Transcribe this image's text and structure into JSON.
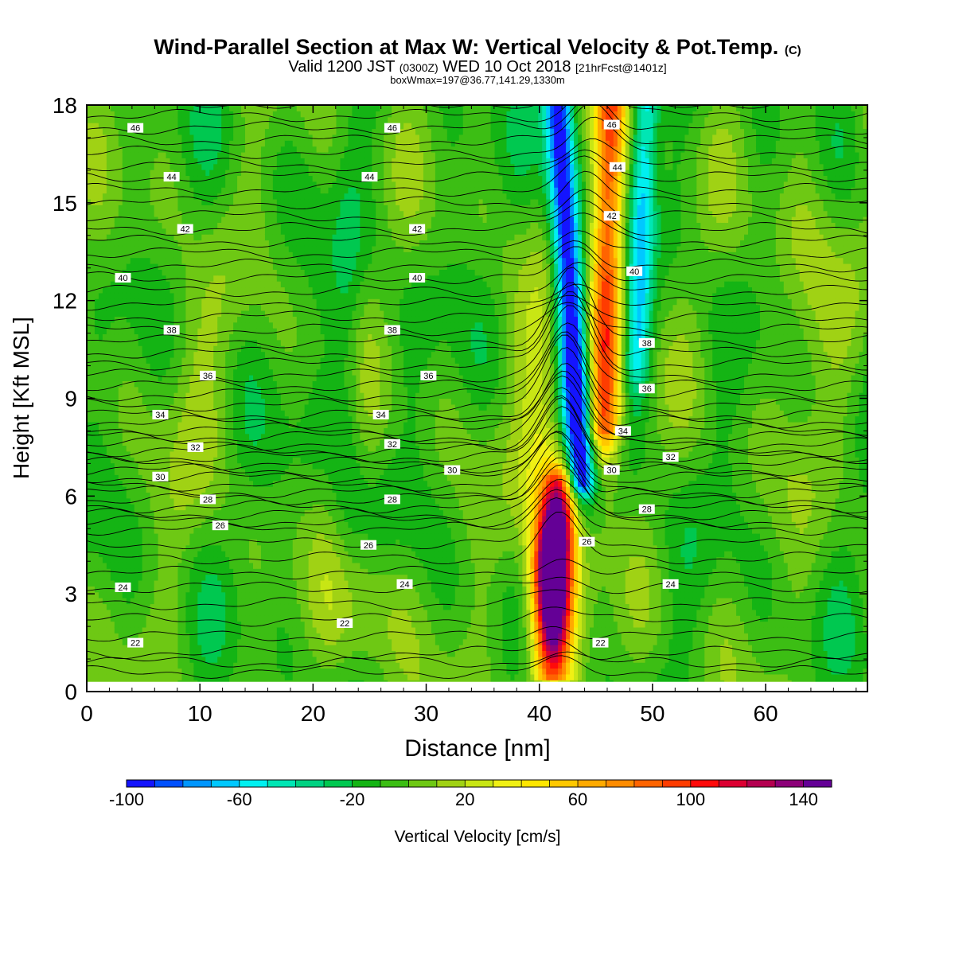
{
  "title": {
    "main": "Wind-Parallel Section at Max W: Vertical Velocity & Pot.Temp.",
    "main_suffix": "(C)",
    "valid_a": "Valid 1200 JST",
    "valid_b": "(0300Z)",
    "valid_c": "WED 10 Oct 2018",
    "valid_d": "[21hrFcst@1401z]",
    "box": "boxWmax=197@36.77,141.29,1330m"
  },
  "chart_data": {
    "type": "heatmap",
    "xlabel": "Distance [nm]",
    "ylabel": "Height [Kft MSL]",
    "xlim": [
      0,
      69
    ],
    "ylim": [
      0,
      18
    ],
    "x_ticks": [
      0,
      10,
      20,
      30,
      40,
      50,
      60
    ],
    "y_ticks": [
      0,
      3,
      6,
      9,
      12,
      15,
      18
    ],
    "colorbar": {
      "label": "Vertical Velocity [cm/s]",
      "min": -100,
      "max": 150,
      "step": 10,
      "tick_labels": [
        "-100",
        "-60",
        "-20",
        "20",
        "60",
        "100",
        "140"
      ],
      "colors": [
        "#1414ff",
        "#0050ff",
        "#0096ff",
        "#00c8ff",
        "#00f0f0",
        "#00e6b4",
        "#00d282",
        "#00c850",
        "#14b414",
        "#3cbe14",
        "#6ec814",
        "#a0d214",
        "#c8e614",
        "#f0f014",
        "#ffe600",
        "#ffc800",
        "#ffaa00",
        "#ff8c00",
        "#ff6400",
        "#ff3c00",
        "#ff0a0a",
        "#dc0032",
        "#b40050",
        "#8c0078",
        "#640096"
      ]
    },
    "theta_contours": [
      {
        "value": 22,
        "height": 1.2
      },
      {
        "value": 24,
        "height": 3.2
      },
      {
        "value": 26,
        "height": 5.0
      },
      {
        "value": 28,
        "height": 5.9
      },
      {
        "value": 30,
        "height": 6.8
      },
      {
        "value": 32,
        "height": 7.6
      },
      {
        "value": 34,
        "height": 8.5
      },
      {
        "value": 36,
        "height": 9.7
      },
      {
        "value": 38,
        "height": 11.1
      },
      {
        "value": 40,
        "height": 12.7
      },
      {
        "value": 42,
        "height": 14.2
      },
      {
        "value": 44,
        "height": 15.8
      },
      {
        "value": 46,
        "height": 17.3
      }
    ],
    "theta_labels": [
      {
        "text": "46",
        "x": 4.3,
        "y": 17.3
      },
      {
        "text": "46",
        "x": 27.0,
        "y": 17.3
      },
      {
        "text": "44",
        "x": 7.5,
        "y": 15.8
      },
      {
        "text": "44",
        "x": 25.0,
        "y": 15.8
      },
      {
        "text": "42",
        "x": 8.7,
        "y": 14.2
      },
      {
        "text": "42",
        "x": 29.2,
        "y": 14.2
      },
      {
        "text": "40",
        "x": 3.2,
        "y": 12.7
      },
      {
        "text": "40",
        "x": 29.2,
        "y": 12.7
      },
      {
        "text": "38",
        "x": 7.5,
        "y": 11.1
      },
      {
        "text": "38",
        "x": 27.0,
        "y": 11.1
      },
      {
        "text": "36",
        "x": 10.7,
        "y": 9.7
      },
      {
        "text": "36",
        "x": 30.2,
        "y": 9.7
      },
      {
        "text": "34",
        "x": 6.5,
        "y": 8.5
      },
      {
        "text": "34",
        "x": 26.0,
        "y": 8.5
      },
      {
        "text": "32",
        "x": 9.6,
        "y": 7.5
      },
      {
        "text": "32",
        "x": 27.0,
        "y": 7.6
      },
      {
        "text": "30",
        "x": 6.5,
        "y": 6.6
      },
      {
        "text": "30",
        "x": 32.3,
        "y": 6.8
      },
      {
        "text": "28",
        "x": 10.7,
        "y": 5.9
      },
      {
        "text": "28",
        "x": 27.0,
        "y": 5.9
      },
      {
        "text": "26",
        "x": 11.8,
        "y": 5.1
      },
      {
        "text": "26",
        "x": 24.9,
        "y": 4.5
      },
      {
        "text": "24",
        "x": 3.2,
        "y": 3.2
      },
      {
        "text": "24",
        "x": 28.1,
        "y": 3.3
      },
      {
        "text": "22",
        "x": 4.3,
        "y": 1.5
      },
      {
        "text": "22",
        "x": 22.8,
        "y": 2.1
      },
      {
        "text": "46",
        "x": 46.4,
        "y": 17.4
      },
      {
        "text": "44",
        "x": 46.9,
        "y": 16.1
      },
      {
        "text": "42",
        "x": 46.4,
        "y": 14.6
      },
      {
        "text": "40",
        "x": 48.4,
        "y": 12.9
      },
      {
        "text": "38",
        "x": 49.5,
        "y": 10.7
      },
      {
        "text": "36",
        "x": 49.5,
        "y": 9.3
      },
      {
        "text": "34",
        "x": 47.4,
        "y": 8.0
      },
      {
        "text": "32",
        "x": 51.6,
        "y": 7.2
      },
      {
        "text": "30",
        "x": 46.4,
        "y": 6.8
      },
      {
        "text": "28",
        "x": 49.5,
        "y": 5.6
      },
      {
        "text": "26",
        "x": 44.2,
        "y": 4.6
      },
      {
        "text": "24",
        "x": 51.6,
        "y": 3.3
      },
      {
        "text": "22",
        "x": 45.4,
        "y": 1.5
      }
    ],
    "features": [
      {
        "name": "updraft-core",
        "x": 41.2,
        "top": 6.5,
        "bottom": 0.4,
        "w_max": 140
      },
      {
        "name": "downdraft-column",
        "x_base": 43.0,
        "top": 18,
        "bottom": 6.5,
        "w_min": -90
      },
      {
        "name": "updraft-column-upper",
        "x_base": 46.5,
        "top": 18,
        "bottom": 8.0,
        "w_max": 100
      }
    ]
  }
}
